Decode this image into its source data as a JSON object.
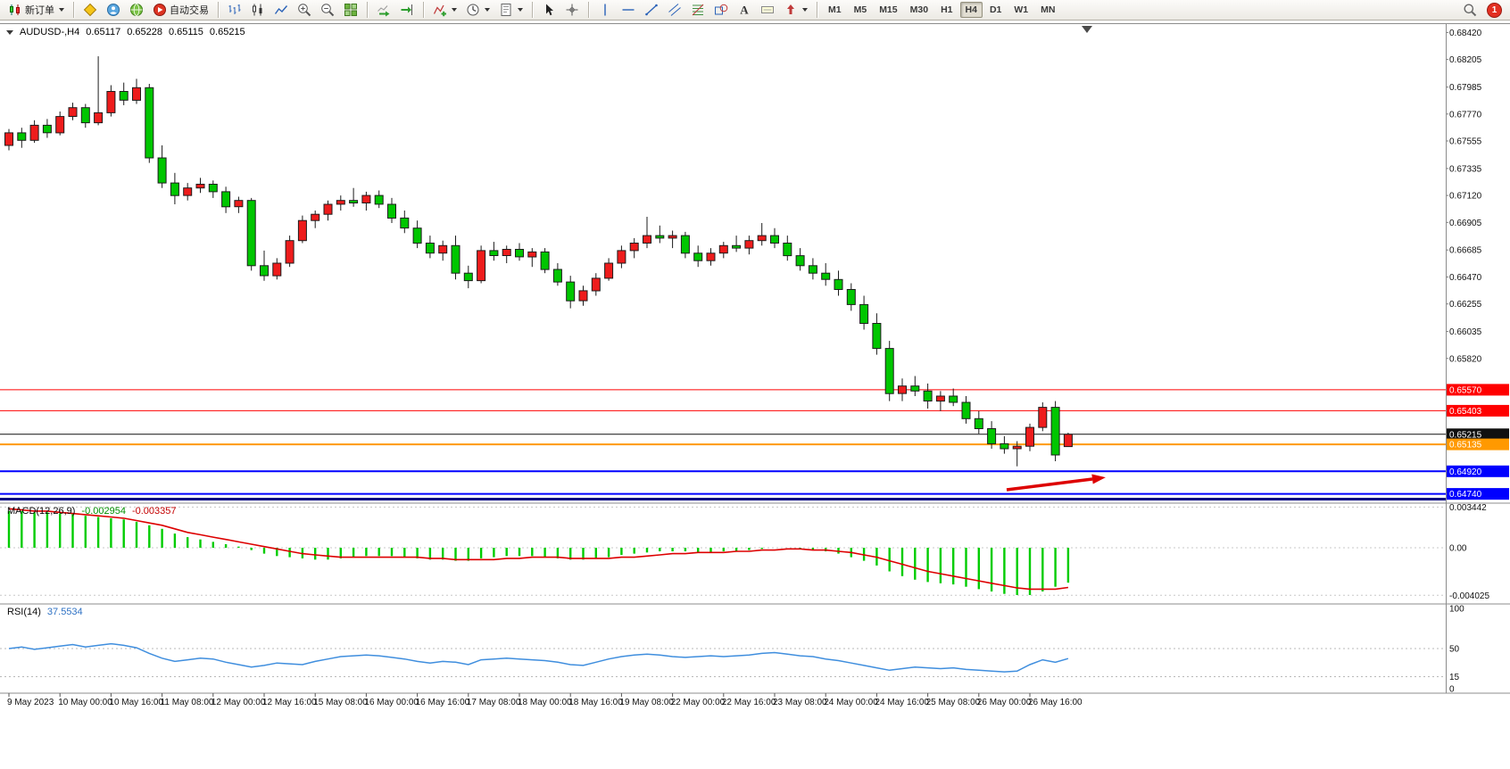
{
  "toolbar": {
    "groups": [
      {
        "items": [
          {
            "name": "new-order",
            "icon": "new-order",
            "label": "新订单",
            "dropdown": true
          }
        ]
      },
      {
        "items": [
          {
            "name": "mql5-market",
            "icon": "diamond"
          },
          {
            "name": "community",
            "icon": "person"
          },
          {
            "name": "web-terminal",
            "icon": "globe"
          },
          {
            "name": "auto-trading",
            "icon": "autotrading",
            "label": "自动交易"
          }
        ]
      },
      {
        "items": [
          {
            "name": "chart-bars-mode",
            "icon": "chart-bars"
          },
          {
            "name": "chart-candles-mode",
            "icon": "chart-candles"
          },
          {
            "name": "chart-line-mode",
            "icon": "chart-line"
          },
          {
            "name": "zoom-in",
            "icon": "zoom-in"
          },
          {
            "name": "zoom-out",
            "icon": "zoom-out"
          },
          {
            "name": "tile-windows",
            "icon": "tile"
          }
        ]
      },
      {
        "items": [
          {
            "name": "auto-scroll",
            "icon": "autoscroll"
          },
          {
            "name": "chart-shift",
            "icon": "shift"
          }
        ]
      },
      {
        "items": [
          {
            "name": "indicators",
            "icon": "indicators",
            "dropdown": true
          },
          {
            "name": "periods",
            "icon": "clock",
            "dropdown": true
          },
          {
            "name": "templates",
            "icon": "template",
            "dropdown": true
          }
        ]
      },
      {
        "items": [
          {
            "name": "cursor",
            "icon": "cursor"
          },
          {
            "name": "crosshair",
            "icon": "crosshair"
          }
        ]
      },
      {
        "items": [
          {
            "name": "vertical-line",
            "icon": "vline"
          },
          {
            "name": "horizontal-line",
            "icon": "hline"
          },
          {
            "name": "trendline",
            "icon": "tline"
          },
          {
            "name": "equidistant-channel",
            "icon": "channel"
          },
          {
            "name": "fibonacci",
            "icon": "fibo"
          },
          {
            "name": "shapes",
            "icon": "shapes"
          },
          {
            "name": "text",
            "icon": "text"
          },
          {
            "name": "text-label",
            "icon": "label"
          },
          {
            "name": "arrow-objects",
            "icon": "arrows",
            "dropdown": true
          }
        ]
      }
    ],
    "timeframes": {
      "items": [
        "M1",
        "M5",
        "M15",
        "M30",
        "H1",
        "H4",
        "D1",
        "W1",
        "MN"
      ],
      "active": "H4"
    },
    "right": {
      "badge": "1"
    }
  },
  "chart": {
    "symbol_period": "AUDUSD-,H4",
    "open": "0.65117",
    "high": "0.65228",
    "low": "0.65115",
    "close": "0.65215"
  },
  "chart_data": {
    "type": "candlestick",
    "title": "AUDUSD-,H4",
    "timeframe": "H4",
    "up_color": "#ee1c1c",
    "down_color": "#00c600",
    "candle_border": "#1c1c1c",
    "price_axis": {
      "ticks": [
        "0.68420",
        "0.68205",
        "0.67985",
        "0.67770",
        "0.67555",
        "0.67335",
        "0.67120",
        "0.66905",
        "0.66685",
        "0.66470",
        "0.66255",
        "0.66035",
        "0.65820"
      ]
    },
    "hlines": [
      {
        "price": 0.6557,
        "color": "#ff0000",
        "label": "0.65570",
        "width": 1
      },
      {
        "price": 0.65403,
        "color": "#ff0000",
        "label": "0.65403",
        "width": 1
      },
      {
        "price": 0.65215,
        "color": "#101010",
        "label": "0.65215",
        "width": 1
      },
      {
        "price": 0.65135,
        "color": "#ff9900",
        "label": "0.65135",
        "width": 2
      },
      {
        "price": 0.6492,
        "color": "#0000ff",
        "label": "0.64920",
        "width": 2
      },
      {
        "price": 0.6474,
        "color": "#0000ff",
        "label": "0.64740",
        "width": 2
      },
      {
        "price": 0.64698,
        "color": "#000080",
        "label": null,
        "width": 3
      }
    ],
    "arrow": {
      "color": "#dd0000",
      "from": [
        1128,
        549
      ],
      "to": [
        1224,
        537
      ]
    },
    "candles": [
      [
        0.6752,
        0.6765,
        0.6748,
        0.6762
      ],
      [
        0.6762,
        0.6766,
        0.675,
        0.6756
      ],
      [
        0.6756,
        0.6772,
        0.6754,
        0.6768
      ],
      [
        0.6768,
        0.6773,
        0.6758,
        0.6762
      ],
      [
        0.6762,
        0.6779,
        0.676,
        0.6775
      ],
      [
        0.6775,
        0.6786,
        0.6772,
        0.6782
      ],
      [
        0.6782,
        0.6785,
        0.6766,
        0.677
      ],
      [
        0.677,
        0.6823,
        0.6768,
        0.6778
      ],
      [
        0.6778,
        0.68,
        0.6775,
        0.6795
      ],
      [
        0.6795,
        0.6802,
        0.6784,
        0.6788
      ],
      [
        0.6788,
        0.6805,
        0.6785,
        0.6798
      ],
      [
        0.6798,
        0.6801,
        0.6738,
        0.6742
      ],
      [
        0.6742,
        0.6752,
        0.6718,
        0.6722
      ],
      [
        0.6722,
        0.673,
        0.6705,
        0.6712
      ],
      [
        0.6712,
        0.6722,
        0.6708,
        0.6718
      ],
      [
        0.6718,
        0.6726,
        0.6714,
        0.6721
      ],
      [
        0.6721,
        0.6724,
        0.671,
        0.6715
      ],
      [
        0.6715,
        0.6719,
        0.6698,
        0.6703
      ],
      [
        0.6703,
        0.6711,
        0.6698,
        0.6708
      ],
      [
        0.6708,
        0.671,
        0.6652,
        0.6656
      ],
      [
        0.6656,
        0.6668,
        0.6644,
        0.6648
      ],
      [
        0.6648,
        0.6662,
        0.6645,
        0.6658
      ],
      [
        0.6658,
        0.668,
        0.6655,
        0.6676
      ],
      [
        0.6676,
        0.6696,
        0.6674,
        0.6692
      ],
      [
        0.6692,
        0.67,
        0.6686,
        0.6697
      ],
      [
        0.6697,
        0.6708,
        0.6692,
        0.6705
      ],
      [
        0.6705,
        0.6712,
        0.67,
        0.6708
      ],
      [
        0.6708,
        0.6718,
        0.6703,
        0.6706
      ],
      [
        0.6706,
        0.6715,
        0.67,
        0.6712
      ],
      [
        0.6712,
        0.6716,
        0.6702,
        0.6705
      ],
      [
        0.6705,
        0.671,
        0.669,
        0.6694
      ],
      [
        0.6694,
        0.67,
        0.6682,
        0.6686
      ],
      [
        0.6686,
        0.6692,
        0.667,
        0.6674
      ],
      [
        0.6674,
        0.668,
        0.6662,
        0.6666
      ],
      [
        0.6666,
        0.6676,
        0.666,
        0.6672
      ],
      [
        0.6672,
        0.668,
        0.6645,
        0.665
      ],
      [
        0.665,
        0.6656,
        0.6638,
        0.6644
      ],
      [
        0.6644,
        0.6672,
        0.6642,
        0.6668
      ],
      [
        0.6668,
        0.6675,
        0.666,
        0.6664
      ],
      [
        0.6664,
        0.6672,
        0.6658,
        0.6669
      ],
      [
        0.6669,
        0.6674,
        0.666,
        0.6663
      ],
      [
        0.6663,
        0.667,
        0.6655,
        0.6667
      ],
      [
        0.6667,
        0.667,
        0.665,
        0.6653
      ],
      [
        0.6653,
        0.6658,
        0.664,
        0.6643
      ],
      [
        0.6643,
        0.6648,
        0.6622,
        0.6628
      ],
      [
        0.6628,
        0.664,
        0.6624,
        0.6636
      ],
      [
        0.6636,
        0.665,
        0.6632,
        0.6646
      ],
      [
        0.6646,
        0.6662,
        0.6644,
        0.6658
      ],
      [
        0.6658,
        0.6672,
        0.6654,
        0.6668
      ],
      [
        0.6668,
        0.6678,
        0.6662,
        0.6674
      ],
      [
        0.6674,
        0.6695,
        0.667,
        0.668
      ],
      [
        0.668,
        0.6688,
        0.6674,
        0.6678
      ],
      [
        0.6678,
        0.6684,
        0.667,
        0.668
      ],
      [
        0.668,
        0.6683,
        0.6662,
        0.6666
      ],
      [
        0.6666,
        0.6672,
        0.6655,
        0.666
      ],
      [
        0.666,
        0.667,
        0.6656,
        0.6666
      ],
      [
        0.6666,
        0.6675,
        0.6662,
        0.6672
      ],
      [
        0.6672,
        0.668,
        0.6667,
        0.667
      ],
      [
        0.667,
        0.668,
        0.6665,
        0.6676
      ],
      [
        0.6676,
        0.669,
        0.6672,
        0.668
      ],
      [
        0.668,
        0.6686,
        0.667,
        0.6674
      ],
      [
        0.6674,
        0.668,
        0.666,
        0.6664
      ],
      [
        0.6664,
        0.667,
        0.6652,
        0.6656
      ],
      [
        0.6656,
        0.6662,
        0.6645,
        0.665
      ],
      [
        0.665,
        0.6658,
        0.664,
        0.6645
      ],
      [
        0.6645,
        0.6652,
        0.6632,
        0.6637
      ],
      [
        0.6637,
        0.6642,
        0.662,
        0.6625
      ],
      [
        0.6625,
        0.6632,
        0.6605,
        0.661
      ],
      [
        0.661,
        0.6618,
        0.6585,
        0.659
      ],
      [
        0.659,
        0.6596,
        0.6548,
        0.6554
      ],
      [
        0.6554,
        0.6566,
        0.6548,
        0.656
      ],
      [
        0.656,
        0.6568,
        0.6552,
        0.6556
      ],
      [
        0.6556,
        0.6562,
        0.6542,
        0.6548
      ],
      [
        0.6548,
        0.6556,
        0.654,
        0.6552
      ],
      [
        0.6552,
        0.6558,
        0.6544,
        0.6547
      ],
      [
        0.6547,
        0.6552,
        0.653,
        0.6534
      ],
      [
        0.6534,
        0.654,
        0.6522,
        0.6526
      ],
      [
        0.6526,
        0.6532,
        0.651,
        0.6514
      ],
      [
        0.6514,
        0.652,
        0.6506,
        0.651
      ],
      [
        0.651,
        0.6516,
        0.6496,
        0.6512
      ],
      [
        0.6512,
        0.653,
        0.6508,
        0.6527
      ],
      [
        0.6527,
        0.6547,
        0.6524,
        0.6543
      ],
      [
        0.6543,
        0.6548,
        0.65,
        0.6505
      ],
      [
        0.65117,
        0.65228,
        0.65115,
        0.65215
      ]
    ],
    "time_labels": [
      "9 May 2023",
      "10 May 00:00",
      "10 May 16:00",
      "11 May 08:00",
      "12 May 00:00",
      "12 May 16:00",
      "15 May 08:00",
      "16 May 00:00",
      "16 May 16:00",
      "17 May 08:00",
      "18 May 00:00",
      "18 May 16:00",
      "19 May 08:00",
      "22 May 00:00",
      "22 May 16:00",
      "23 May 08:00",
      "24 May 00:00",
      "24 May 16:00",
      "25 May 08:00",
      "26 May 00:00",
      "26 May 16:00"
    ],
    "macd": {
      "title": "MACD(12,26,9)",
      "value_main": "-0.002954",
      "value_signal": "-0.003357",
      "histogram_color": "#00cc00",
      "signal_color": "#dd0000",
      "axis": [
        {
          "v": 0.003442,
          "label": "0.003442"
        },
        {
          "v": 0,
          "label": "0.00"
        },
        {
          "v": -0.004025,
          "label": "-0.004025"
        }
      ],
      "histogram": [
        0.0031,
        0.0031,
        0.003,
        0.003,
        0.0029,
        0.0029,
        0.0027,
        0.0026,
        0.0025,
        0.0024,
        0.0022,
        0.0019,
        0.0016,
        0.0012,
        0.0009,
        0.0007,
        0.0005,
        0.0003,
        0.0001,
        -0.0002,
        -0.0005,
        -0.0007,
        -0.0008,
        -0.0009,
        -0.001,
        -0.001,
        -0.0009,
        -0.0008,
        -0.0007,
        -0.0007,
        -0.0007,
        -0.0008,
        -0.0009,
        -0.001,
        -0.001,
        -0.0011,
        -0.0011,
        -0.0009,
        -0.0008,
        -0.0007,
        -0.0007,
        -0.0007,
        -0.0008,
        -0.0009,
        -0.001,
        -0.001,
        -0.0009,
        -0.0008,
        -0.0006,
        -0.0005,
        -0.0004,
        -0.0003,
        -0.0003,
        -0.0003,
        -0.0004,
        -0.0004,
        -0.0003,
        -0.0003,
        -0.0002,
        -0.0001,
        0,
        0,
        -0.0001,
        -0.0002,
        -0.0003,
        -0.0005,
        -0.0008,
        -0.0011,
        -0.0015,
        -0.002,
        -0.0024,
        -0.0027,
        -0.0029,
        -0.003,
        -0.0031,
        -0.0033,
        -0.0035,
        -0.0037,
        -0.0039,
        -0.004,
        -0.004,
        -0.0037,
        -0.0033,
        -0.002954
      ],
      "signal": [
        0.0033,
        0.0032,
        0.0031,
        0.0031,
        0.003,
        0.0029,
        0.0028,
        0.0027,
        0.0026,
        0.0025,
        0.0023,
        0.0021,
        0.0019,
        0.0016,
        0.0013,
        0.0011,
        0.0009,
        0.0007,
        0.0005,
        0.0003,
        0.0001,
        -0.0001,
        -0.0003,
        -0.0005,
        -0.0006,
        -0.0007,
        -0.0008,
        -0.0008,
        -0.0008,
        -0.0008,
        -0.0008,
        -0.0008,
        -0.0008,
        -0.0009,
        -0.0009,
        -0.001,
        -0.001,
        -0.001,
        -0.001,
        -0.0009,
        -0.0009,
        -0.0008,
        -0.0008,
        -0.0008,
        -0.0009,
        -0.0009,
        -0.0009,
        -0.0009,
        -0.0008,
        -0.0008,
        -0.0007,
        -0.0006,
        -0.0005,
        -0.0005,
        -0.0004,
        -0.0004,
        -0.0004,
        -0.0003,
        -0.0003,
        -0.0002,
        -0.0002,
        -0.0001,
        -0.0001,
        -0.0002,
        -0.0002,
        -0.0003,
        -0.0004,
        -0.0006,
        -0.0008,
        -0.0011,
        -0.0014,
        -0.0017,
        -0.002,
        -0.0022,
        -0.0024,
        -0.0026,
        -0.0028,
        -0.003,
        -0.0032,
        -0.0034,
        -0.0035,
        -0.0035,
        -0.0035,
        -0.003357
      ]
    },
    "rsi": {
      "title": "RSI(14)",
      "value": "37.5534",
      "color": "#3f8ede",
      "axis": [
        {
          "v": 100,
          "label": "100"
        },
        {
          "v": 50,
          "label": "50"
        },
        {
          "v": 15,
          "label": "15"
        },
        {
          "v": 0,
          "label": "0"
        }
      ],
      "levels": [
        50,
        15
      ],
      "values": [
        50,
        52,
        49,
        51,
        53,
        55,
        52,
        54,
        56,
        54,
        51,
        44,
        38,
        34,
        36,
        38,
        37,
        33,
        30,
        27,
        29,
        32,
        31,
        30,
        34,
        37,
        40,
        41,
        42,
        41,
        39,
        37,
        34,
        32,
        34,
        33,
        30,
        36,
        37,
        38,
        37,
        36,
        35,
        33,
        30,
        29,
        33,
        37,
        40,
        42,
        43,
        42,
        40,
        39,
        40,
        41,
        40,
        41,
        42,
        44,
        45,
        43,
        41,
        40,
        37,
        35,
        32,
        29,
        26,
        23,
        25,
        27,
        26,
        25,
        26,
        24,
        23,
        22,
        21,
        22,
        30,
        36,
        33,
        37.55
      ]
    }
  }
}
